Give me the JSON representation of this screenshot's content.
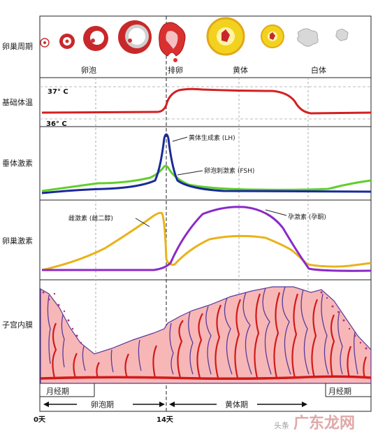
{
  "row_labels": {
    "ovarian_cycle": "卵巢周期",
    "basal_temp": "基础体温",
    "pituitary": "垂体激素",
    "ovarian_hormones": "卵巢激素",
    "endometrium": "子宫内膜"
  },
  "phase_labels": {
    "follicle": "卵泡",
    "ovulation": "排卵",
    "corpus_luteum": "黄体",
    "corpus_albicans": "白体"
  },
  "temperature_marks": {
    "high": "37° C",
    "low": "36° C"
  },
  "hormone_labels": {
    "lh": "黄体生成素 (LH)",
    "fsh": "卵泡刺激素 (FSH)",
    "estrogen": "雌激素 (雌二醇)",
    "progesterone": "孕激素 (孕酮)"
  },
  "bottom_labels": {
    "menses_left": "月经期",
    "menses_right": "月经期",
    "follicular_phase": "卵泡期",
    "luteal_phase": "黄体期",
    "day0": "0天",
    "day14": "14天"
  },
  "watermark": {
    "source": "头条",
    "brand": "广东龙网"
  },
  "colors": {
    "temperature": "#d42020",
    "lh": "#1a2a9a",
    "fsh": "#5fcf2a",
    "estrogen": "#eab21a",
    "progesterone": "#8a2ac8",
    "endometrium_fill": "#f7b7b7",
    "vessel": "#d21a1a",
    "gland": "#5a3a9a"
  }
}
